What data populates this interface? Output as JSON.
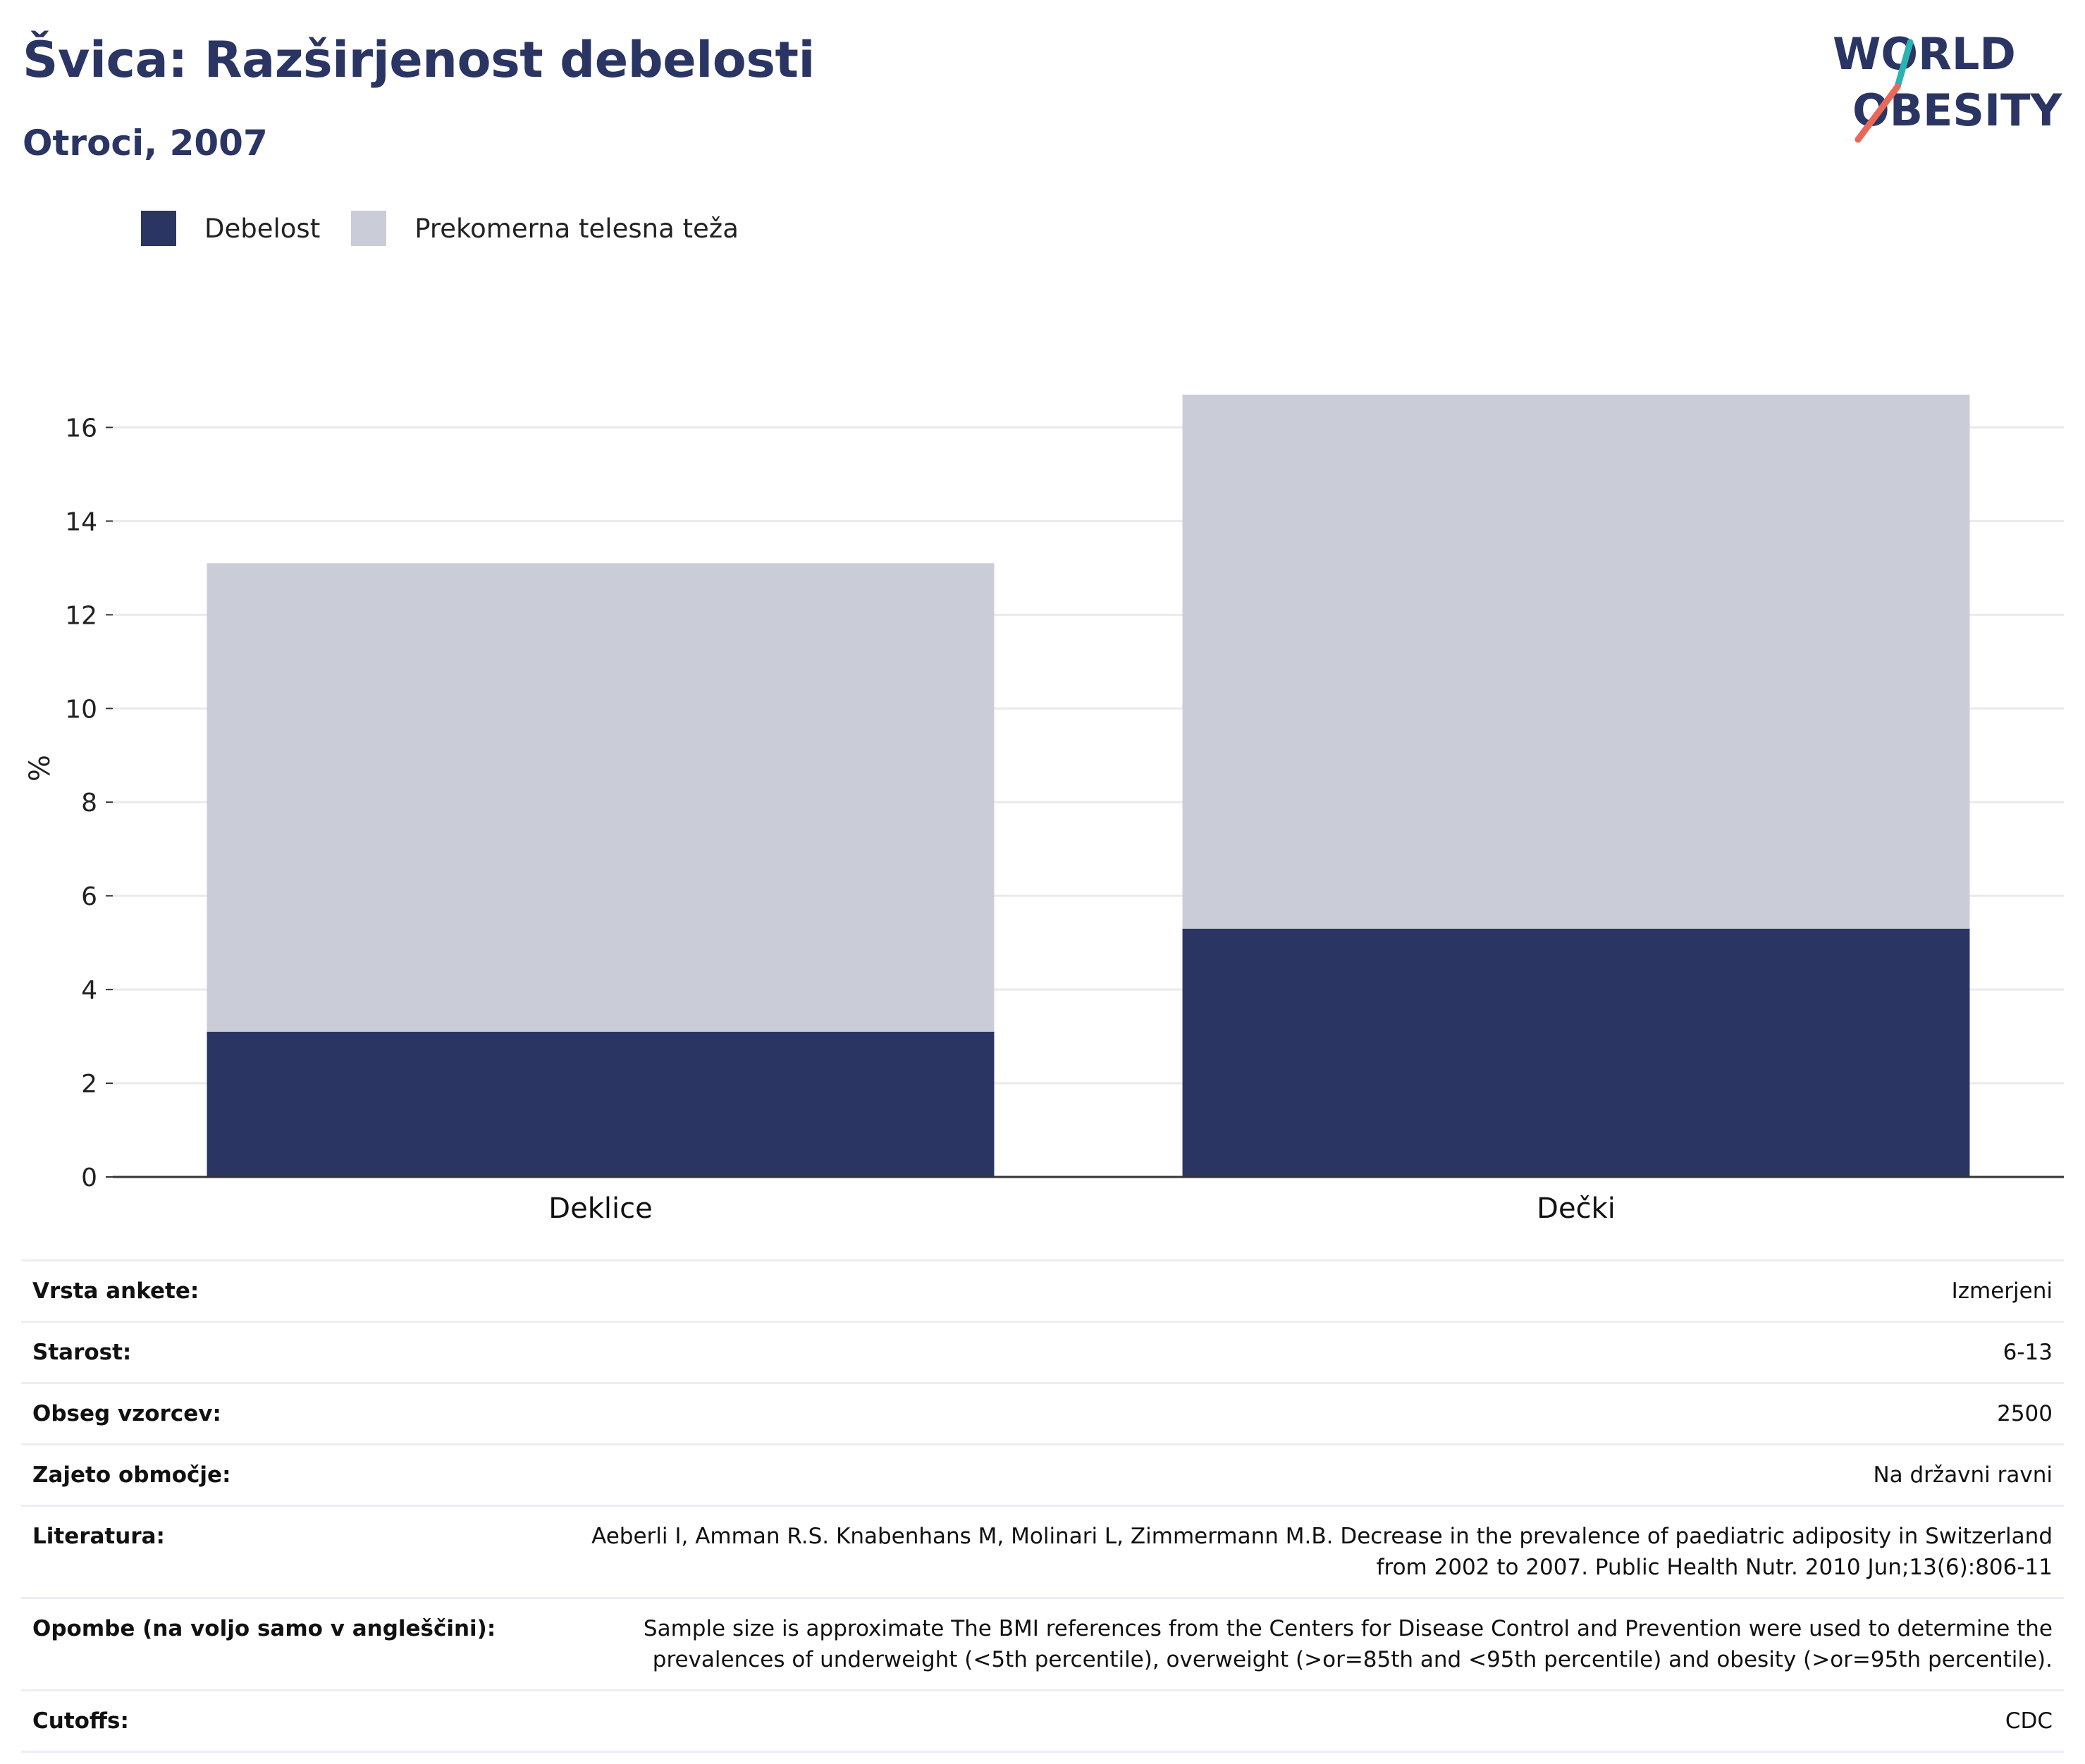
{
  "header": {
    "title": "Švica: Razširjenost debelosti",
    "subtitle": "Otroci, 2007"
  },
  "logo": {
    "line1": "WORLD",
    "line2": "OBESITY",
    "colors": {
      "text": "#2a3563",
      "slash_top": "#2bb3b1",
      "slash_bottom": "#e8685a"
    }
  },
  "colors": {
    "obesity": "#2a3563",
    "overweight": "#caccd8",
    "title": "#2a3563",
    "grid": "#e9e9ee",
    "axis": "#333333"
  },
  "chart_data": {
    "type": "bar",
    "stacked": true,
    "categories": [
      "Deklice",
      "Dečki"
    ],
    "series": [
      {
        "name": "Debelost",
        "values": [
          3.1,
          5.3
        ],
        "color": "#2a3563"
      },
      {
        "name": "Prekomerna telesna teža",
        "values": [
          10.0,
          11.4
        ],
        "color": "#caccd8"
      }
    ],
    "ylabel": "%",
    "ylim": [
      0,
      17
    ],
    "yticks": [
      0,
      2,
      4,
      6,
      8,
      10,
      12,
      14,
      16
    ],
    "grid": true,
    "legend_position": "top-left"
  },
  "info_table": [
    {
      "label": "Vrsta ankete:",
      "value": "Izmerjeni"
    },
    {
      "label": "Starost:",
      "value": "6-13"
    },
    {
      "label": "Obseg vzorcev:",
      "value": "2500"
    },
    {
      "label": "Zajeto območje:",
      "value": "Na državni ravni"
    },
    {
      "label": "Literatura:",
      "value": "Aeberli I, Amman R.S. Knabenhans M, Molinari L, Zimmermann M.B. Decrease in the prevalence of paediatric adiposity in Switzerland from 2002 to 2007. Public Health Nutr. 2010 Jun;13(6):806-11"
    },
    {
      "label": "Opombe (na voljo samo v angleščini):",
      "value": "Sample size is approximate The BMI references from the Centers for Disease Control and Prevention were used to determine the prevalences of underweight (<5th percentile), overweight (>or=85th and <95th percentile) and obesity (>or=95th percentile)."
    },
    {
      "label": "Cutoffs:",
      "value": "CDC"
    }
  ]
}
